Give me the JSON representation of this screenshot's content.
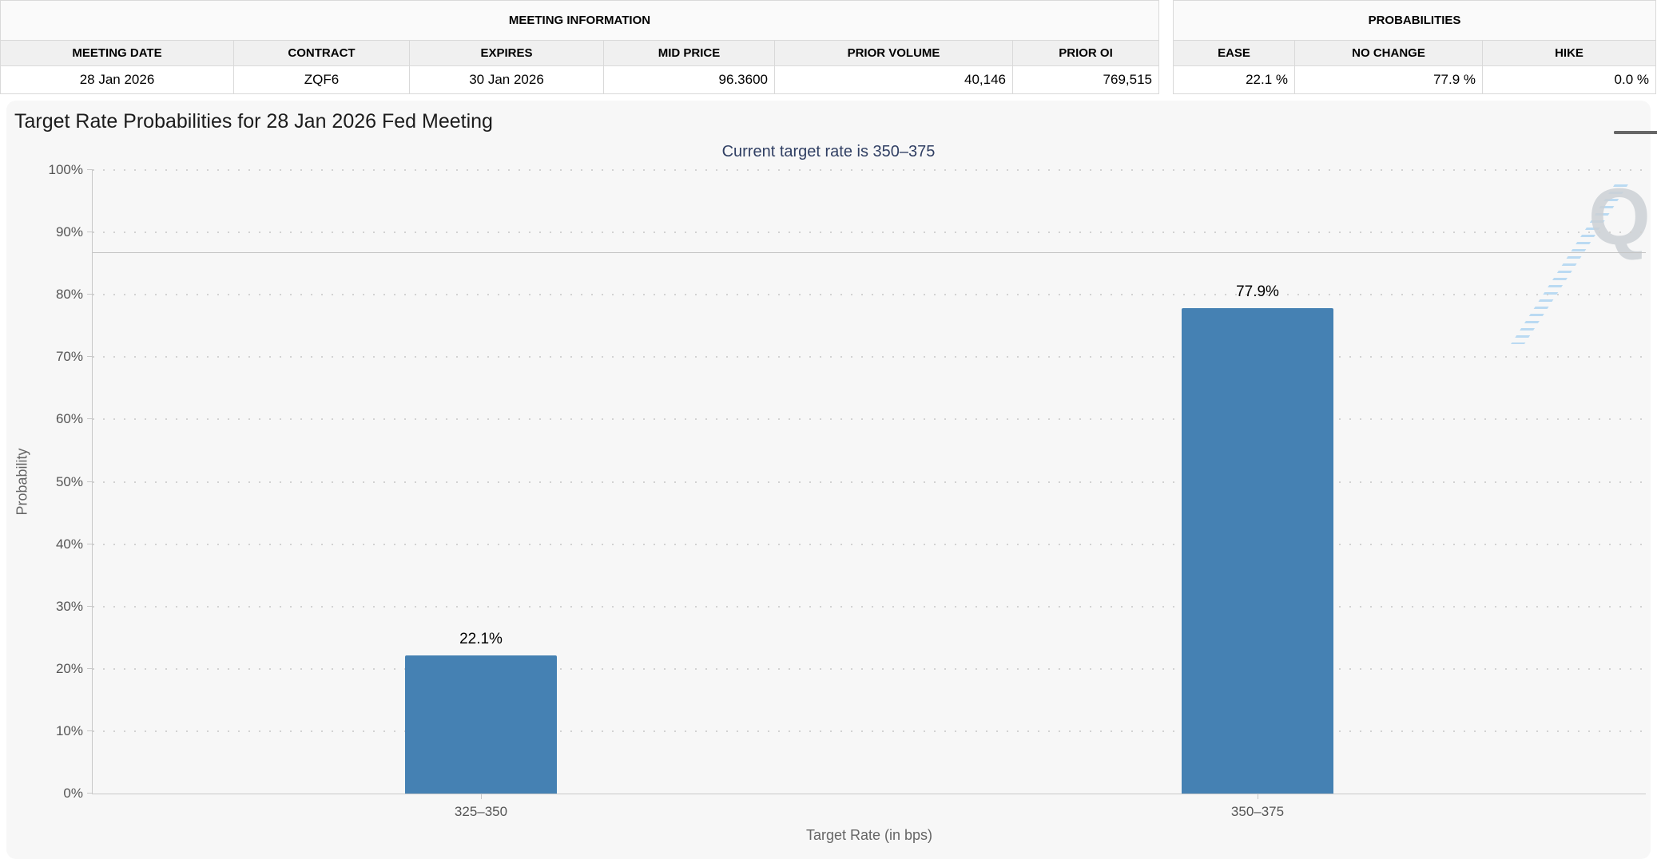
{
  "meeting_information": {
    "title": "MEETING INFORMATION",
    "columns": [
      "MEETING DATE",
      "CONTRACT",
      "EXPIRES",
      "MID PRICE",
      "PRIOR VOLUME",
      "PRIOR OI"
    ],
    "values": [
      "28 Jan 2026",
      "ZQF6",
      "30 Jan 2026",
      "96.3600",
      "40,146",
      "769,515"
    ]
  },
  "probabilities": {
    "title": "PROBABILITIES",
    "columns": [
      "EASE",
      "NO CHANGE",
      "HIKE"
    ],
    "values": [
      "22.1 %",
      "77.9 %",
      "0.0 %"
    ]
  },
  "chart": {
    "title": "Target Rate Probabilities for 28 Jan 2026 Fed Meeting",
    "subtitle": "Current target rate is 350–375",
    "menu_icon": "hamburger-menu-icon",
    "watermark_letter": "Q"
  },
  "chart_data": {
    "type": "bar",
    "title": "Target Rate Probabilities for 28 Jan 2026 Fed Meeting",
    "subtitle": "Current target rate is 350–375",
    "categories": [
      "325–350",
      "350–375"
    ],
    "values": [
      22.1,
      77.9
    ],
    "data_labels": [
      "22.1%",
      "77.9%"
    ],
    "xlabel": "Target Rate (in bps)",
    "ylabel": "Probability",
    "ylim": [
      0,
      100
    ],
    "ytick_step": 10,
    "ytick_suffix": "%",
    "grid": "dotted horizontal",
    "legend": "none",
    "plot_line_y": 86.7,
    "bar_color": "#4581b3",
    "subtitle_color": "#303f63",
    "background_color": "#f7f7f7"
  }
}
